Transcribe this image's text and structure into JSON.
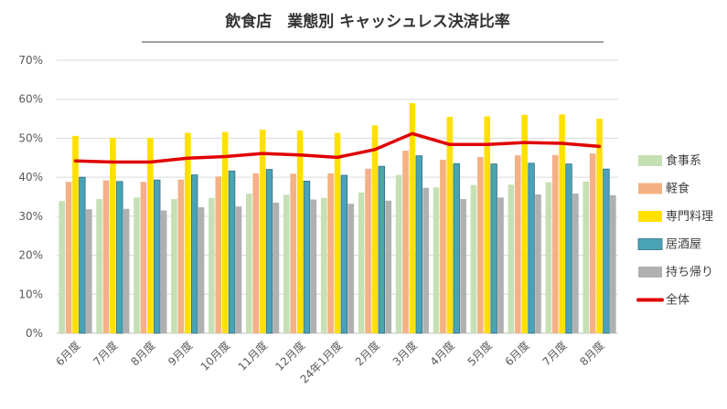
{
  "chart_data": {
    "type": "bar",
    "title": "飲食店　業態別 キャッシュレス決済比率",
    "xlabel": "",
    "ylabel": "",
    "ylim": [
      0,
      70
    ],
    "yticks": [
      0,
      10,
      20,
      30,
      40,
      50,
      60,
      70
    ],
    "ytick_labels": [
      "0%",
      "10%",
      "20%",
      "30%",
      "40%",
      "50%",
      "60%",
      "70%"
    ],
    "grid": true,
    "legend_position": "right",
    "categories": [
      "6月度",
      "7月度",
      "8月度",
      "9月度",
      "10月度",
      "11月度",
      "12月度",
      "24年1月度",
      "2月度",
      "3月度",
      "4月度",
      "5月度",
      "6月度",
      "7月度",
      "8月度"
    ],
    "series": [
      {
        "name": "食事系",
        "type": "bar",
        "color": "#c5e0b4",
        "values": [
          33.9,
          34.4,
          34.8,
          34.4,
          34.7,
          35.8,
          35.5,
          34.7,
          36.1,
          40.6,
          37.4,
          38.0,
          38.1,
          38.7,
          38.9
        ]
      },
      {
        "name": "軽食",
        "type": "bar",
        "color": "#f4b183",
        "values": [
          38.8,
          39.2,
          38.8,
          39.4,
          40.2,
          41.0,
          40.9,
          41.0,
          42.2,
          46.8,
          44.5,
          45.2,
          45.6,
          45.7,
          46.1
        ]
      },
      {
        "name": "専門料理",
        "type": "bar",
        "color": "#ffe000",
        "values": [
          50.6,
          50.1,
          50.1,
          51.4,
          51.6,
          52.2,
          52.0,
          51.4,
          53.3,
          59.0,
          55.5,
          55.6,
          56.0,
          56.1,
          55.0
        ]
      },
      {
        "name": "居酒屋",
        "type": "bar",
        "color": "#4aa3b5",
        "values": [
          40.0,
          38.9,
          39.3,
          40.6,
          41.6,
          42.0,
          39.0,
          40.5,
          42.8,
          45.5,
          43.5,
          43.4,
          43.6,
          43.4,
          42.1
        ]
      },
      {
        "name": "持ち帰り",
        "type": "bar",
        "color": "#b0b0b0",
        "values": [
          31.8,
          31.9,
          31.5,
          32.3,
          32.5,
          33.5,
          34.3,
          33.2,
          34.0,
          37.3,
          34.4,
          34.8,
          35.6,
          35.8,
          35.4
        ]
      },
      {
        "name": "全体",
        "type": "line",
        "color": "#e00000",
        "values": [
          44.2,
          43.9,
          43.9,
          44.9,
          45.3,
          46.1,
          45.7,
          45.1,
          47.1,
          51.2,
          48.4,
          48.4,
          48.9,
          48.7,
          47.9
        ]
      }
    ]
  }
}
